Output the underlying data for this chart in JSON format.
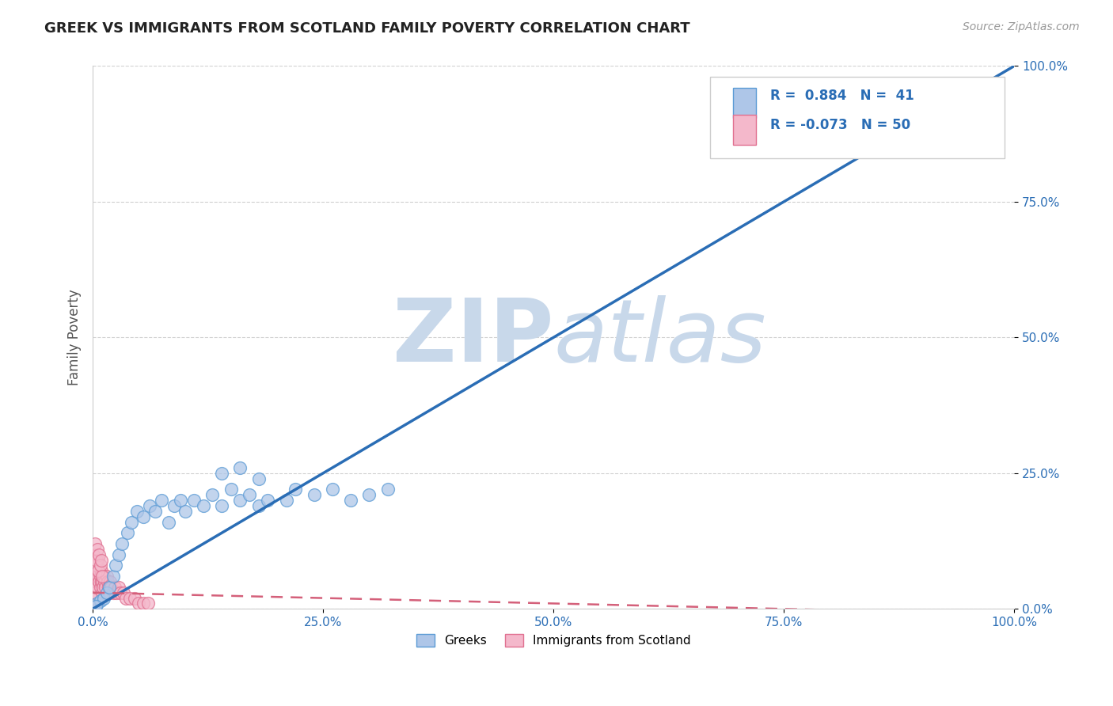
{
  "title": "GREEK VS IMMIGRANTS FROM SCOTLAND FAMILY POVERTY CORRELATION CHART",
  "source": "Source: ZipAtlas.com",
  "ylabel": "Family Poverty",
  "xlabel": "",
  "xlim": [
    0,
    1.0
  ],
  "ylim": [
    0,
    1.0
  ],
  "xticks": [
    0.0,
    0.25,
    0.5,
    0.75,
    1.0
  ],
  "yticks": [
    0.0,
    0.25,
    0.5,
    0.75,
    1.0
  ],
  "xtick_labels": [
    "0.0%",
    "25.0%",
    "50.0%",
    "75.0%",
    "100.0%"
  ],
  "ytick_labels": [
    "0.0%",
    "25.0%",
    "50.0%",
    "75.0%",
    "100.0%"
  ],
  "greek_R": 0.884,
  "greek_N": 41,
  "scotland_R": -0.073,
  "scotland_N": 50,
  "greek_color": "#aec6e8",
  "greek_edge_color": "#5b9bd5",
  "greek_line_color": "#2a6db5",
  "scotland_color": "#f4b8cb",
  "scotland_edge_color": "#e07090",
  "scotland_line_color": "#d4607a",
  "watermark_color": "#c8d8ea",
  "greek_scatter_x": [
    0.005,
    0.008,
    0.012,
    0.015,
    0.018,
    0.022,
    0.025,
    0.028,
    0.032,
    0.038,
    0.042,
    0.048,
    0.055,
    0.062,
    0.068,
    0.075,
    0.082,
    0.088,
    0.095,
    0.1,
    0.11,
    0.12,
    0.13,
    0.14,
    0.15,
    0.16,
    0.17,
    0.18,
    0.19,
    0.21,
    0.22,
    0.24,
    0.26,
    0.28,
    0.3,
    0.32,
    0.14,
    0.16,
    0.18,
    0.88,
    0.003
  ],
  "greek_scatter_y": [
    0.01,
    0.015,
    0.02,
    0.03,
    0.04,
    0.06,
    0.08,
    0.1,
    0.12,
    0.14,
    0.16,
    0.18,
    0.17,
    0.19,
    0.18,
    0.2,
    0.16,
    0.19,
    0.2,
    0.18,
    0.2,
    0.19,
    0.21,
    0.19,
    0.22,
    0.2,
    0.21,
    0.19,
    0.2,
    0.2,
    0.22,
    0.21,
    0.22,
    0.2,
    0.21,
    0.22,
    0.25,
    0.26,
    0.24,
    0.92,
    0.005
  ],
  "scotland_scatter_x": [
    0.001,
    0.002,
    0.003,
    0.003,
    0.004,
    0.004,
    0.005,
    0.005,
    0.006,
    0.006,
    0.007,
    0.007,
    0.008,
    0.008,
    0.009,
    0.009,
    0.01,
    0.01,
    0.011,
    0.012,
    0.013,
    0.014,
    0.015,
    0.016,
    0.017,
    0.018,
    0.019,
    0.02,
    0.022,
    0.024,
    0.026,
    0.028,
    0.03,
    0.033,
    0.036,
    0.04,
    0.045,
    0.05,
    0.055,
    0.06,
    0.001,
    0.002,
    0.003,
    0.004,
    0.005,
    0.006,
    0.007,
    0.008,
    0.009,
    0.01
  ],
  "scotland_scatter_y": [
    0.02,
    0.03,
    0.04,
    0.06,
    0.05,
    0.07,
    0.04,
    0.08,
    0.06,
    0.09,
    0.05,
    0.07,
    0.04,
    0.06,
    0.05,
    0.07,
    0.03,
    0.05,
    0.04,
    0.06,
    0.05,
    0.04,
    0.06,
    0.05,
    0.04,
    0.03,
    0.05,
    0.04,
    0.03,
    0.04,
    0.03,
    0.04,
    0.03,
    0.03,
    0.02,
    0.02,
    0.02,
    0.01,
    0.01,
    0.01,
    0.1,
    0.12,
    0.08,
    0.09,
    0.11,
    0.07,
    0.1,
    0.08,
    0.09,
    0.06
  ],
  "greek_trend_x": [
    0.0,
    1.0
  ],
  "greek_trend_y": [
    0.0,
    1.0
  ],
  "scotland_trend_x": [
    0.0,
    1.0
  ],
  "scotland_trend_y": [
    0.03,
    -0.01
  ]
}
